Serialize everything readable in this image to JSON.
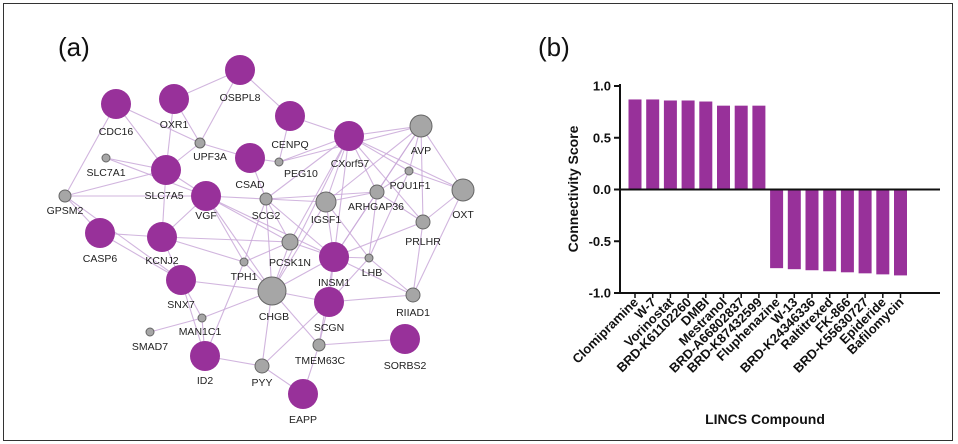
{
  "panels": {
    "a_label": "(a)",
    "b_label": "(b)"
  },
  "colors": {
    "purple": "#98319a",
    "grey": "#a6a6a6",
    "edge": "#c9a8d8",
    "axis": "#111111"
  },
  "network": {
    "nodes": [
      {
        "id": "OSBPL8",
        "kind": "purple"
      },
      {
        "id": "CDC16",
        "kind": "purple"
      },
      {
        "id": "OXR1",
        "kind": "purple"
      },
      {
        "id": "CENPQ",
        "kind": "purple"
      },
      {
        "id": "CXorf57",
        "kind": "purple"
      },
      {
        "id": "AVP",
        "kind": "grey"
      },
      {
        "id": "UPF3A",
        "kind": "grey"
      },
      {
        "id": "SLC7A1",
        "kind": "grey"
      },
      {
        "id": "SLC7A5",
        "kind": "purple"
      },
      {
        "id": "CSAD",
        "kind": "purple"
      },
      {
        "id": "PEG10",
        "kind": "grey"
      },
      {
        "id": "POU1F1",
        "kind": "grey"
      },
      {
        "id": "OXT",
        "kind": "grey"
      },
      {
        "id": "GPSM2",
        "kind": "grey"
      },
      {
        "id": "VGF",
        "kind": "purple"
      },
      {
        "id": "SCG2",
        "kind": "grey"
      },
      {
        "id": "IGSF1",
        "kind": "grey"
      },
      {
        "id": "ARHGAP36",
        "kind": "grey"
      },
      {
        "id": "PRLHR",
        "kind": "grey"
      },
      {
        "id": "CASP6",
        "kind": "purple"
      },
      {
        "id": "KCNJ2",
        "kind": "purple"
      },
      {
        "id": "PCSK1N",
        "kind": "grey"
      },
      {
        "id": "TPH1",
        "kind": "grey"
      },
      {
        "id": "INSM1",
        "kind": "purple"
      },
      {
        "id": "LHB",
        "kind": "grey"
      },
      {
        "id": "SNX7",
        "kind": "purple"
      },
      {
        "id": "CHGB",
        "kind": "grey"
      },
      {
        "id": "RIIAD1",
        "kind": "grey"
      },
      {
        "id": "MAN1C1",
        "kind": "grey"
      },
      {
        "id": "SCGN",
        "kind": "purple"
      },
      {
        "id": "SMAD7",
        "kind": "grey"
      },
      {
        "id": "SORBS2",
        "kind": "purple"
      },
      {
        "id": "TMEM63C",
        "kind": "grey"
      },
      {
        "id": "ID2",
        "kind": "purple"
      },
      {
        "id": "PYY",
        "kind": "grey"
      },
      {
        "id": "EAPP",
        "kind": "purple"
      }
    ],
    "edges": [
      [
        "OSBPL8",
        "CENPQ"
      ],
      [
        "OSBPL8",
        "OXR1"
      ],
      [
        "OSBPL8",
        "UPF3A"
      ],
      [
        "CDC16",
        "SLC7A5"
      ],
      [
        "CDC16",
        "UPF3A"
      ],
      [
        "OXR1",
        "UPF3A"
      ],
      [
        "OXR1",
        "SLC7A5"
      ],
      [
        "UPF3A",
        "SLC7A5"
      ],
      [
        "UPF3A",
        "CSAD"
      ],
      [
        "CENPQ",
        "CXorf57"
      ],
      [
        "CENPQ",
        "PEG10"
      ],
      [
        "CXorf57",
        "AVP"
      ],
      [
        "CXorf57",
        "OXT"
      ],
      [
        "CXorf57",
        "POU1F1"
      ],
      [
        "CXorf57",
        "ARHGAP36"
      ],
      [
        "CXorf57",
        "PEG10"
      ],
      [
        "CXorf57",
        "SCG2"
      ],
      [
        "CXorf57",
        "IGSF1"
      ],
      [
        "CXorf57",
        "INSM1"
      ],
      [
        "CXorf57",
        "CHGB"
      ],
      [
        "CXorf57",
        "PRLHR"
      ],
      [
        "CXorf57",
        "PCSK1N"
      ],
      [
        "AVP",
        "OXT"
      ],
      [
        "AVP",
        "POU1F1"
      ],
      [
        "AVP",
        "ARHGAP36"
      ],
      [
        "AVP",
        "INSM1"
      ],
      [
        "AVP",
        "PEG10"
      ],
      [
        "AVP",
        "PRLHR"
      ],
      [
        "SLC7A1",
        "SLC7A5"
      ],
      [
        "SLC7A1",
        "VGF"
      ],
      [
        "SLC7A5",
        "GPSM2"
      ],
      [
        "SLC7A5",
        "VGF"
      ],
      [
        "SLC7A5",
        "KCNJ2"
      ],
      [
        "GPSM2",
        "CASP6"
      ],
      [
        "GPSM2",
        "SNX7"
      ],
      [
        "GPSM2",
        "VGF"
      ],
      [
        "GPSM2",
        "CDC16"
      ],
      [
        "CSAD",
        "PEG10"
      ],
      [
        "CSAD",
        "SCG2"
      ],
      [
        "VGF",
        "SCG2"
      ],
      [
        "VGF",
        "KCNJ2"
      ],
      [
        "VGF",
        "PCSK1N"
      ],
      [
        "VGF",
        "INSM1"
      ],
      [
        "VGF",
        "CHGB"
      ],
      [
        "VGF",
        "TPH1"
      ],
      [
        "SCG2",
        "IGSF1"
      ],
      [
        "SCG2",
        "PCSK1N"
      ],
      [
        "SCG2",
        "CHGB"
      ],
      [
        "SCG2",
        "INSM1"
      ],
      [
        "SCG2",
        "TPH1"
      ],
      [
        "SCG2",
        "ARHGAP36"
      ],
      [
        "IGSF1",
        "ARHGAP36"
      ],
      [
        "IGSF1",
        "INSM1"
      ],
      [
        "IGSF1",
        "CHGB"
      ],
      [
        "IGSF1",
        "LHB"
      ],
      [
        "ARHGAP36",
        "INSM1"
      ],
      [
        "ARHGAP36",
        "POU1F1"
      ],
      [
        "ARHGAP36",
        "PRLHR"
      ],
      [
        "ARHGAP36",
        "LHB"
      ],
      [
        "POU1F1",
        "OXT"
      ],
      [
        "POU1F1",
        "LHB"
      ],
      [
        "PRLHR",
        "OXT"
      ],
      [
        "PRLHR",
        "INSM1"
      ],
      [
        "PRLHR",
        "RIIAD1"
      ],
      [
        "KCNJ2",
        "CASP6"
      ],
      [
        "KCNJ2",
        "SNX7"
      ],
      [
        "KCNJ2",
        "PCSK1N"
      ],
      [
        "KCNJ2",
        "TPH1"
      ],
      [
        "PCSK1N",
        "CHGB"
      ],
      [
        "PCSK1N",
        "INSM1"
      ],
      [
        "PCSK1N",
        "TPH1"
      ],
      [
        "TPH1",
        "CHGB"
      ],
      [
        "INSM1",
        "CHGB"
      ],
      [
        "INSM1",
        "SCGN"
      ],
      [
        "INSM1",
        "LHB"
      ],
      [
        "INSM1",
        "TMEM63C"
      ],
      [
        "INSM1",
        "RIIAD1"
      ],
      [
        "LHB",
        "SCGN"
      ],
      [
        "LHB",
        "RIIAD1"
      ],
      [
        "SNX7",
        "MAN1C1"
      ],
      [
        "SNX7",
        "CHGB"
      ],
      [
        "SNX7",
        "ID2"
      ],
      [
        "CHGB",
        "SCGN"
      ],
      [
        "CHGB",
        "PYY"
      ],
      [
        "CHGB",
        "MAN1C1"
      ],
      [
        "CHGB",
        "TMEM63C"
      ],
      [
        "MAN1C1",
        "SMAD7"
      ],
      [
        "MAN1C1",
        "ID2"
      ],
      [
        "SCGN",
        "TMEM63C"
      ],
      [
        "SCGN",
        "RIIAD1"
      ],
      [
        "SCGN",
        "PYY"
      ],
      [
        "ID2",
        "PYY"
      ],
      [
        "ID2",
        "TPH1"
      ],
      [
        "PYY",
        "EAPP"
      ],
      [
        "EAPP",
        "TMEM63C"
      ],
      [
        "SORBS2",
        "TMEM63C"
      ],
      [
        "CASP6",
        "SNX7"
      ],
      [
        "OXT",
        "RIIAD1"
      ],
      [
        "AVP",
        "IGSF1"
      ]
    ]
  },
  "chart_data": {
    "type": "bar",
    "title": "",
    "xlabel": "LINCS Compound",
    "ylabel": "Connectivity Score",
    "ylim": [
      -1.0,
      1.0
    ],
    "yticks": [
      "1.0",
      "0.5",
      "0.0",
      "-0.5",
      "-1.0"
    ],
    "ytick_values": [
      1.0,
      0.5,
      0.0,
      -0.5,
      -1.0
    ],
    "grid": false,
    "legend": "none",
    "categories": [
      "Clomipramine",
      "W-7",
      "Vorinostat",
      "BRD-K61102260",
      "DMBI",
      "Mestranol",
      "BRD-A66802837",
      "BRD-K87432599",
      "Fluphenazine",
      "W-13",
      "BRD-K24346336",
      "Raltitrexed",
      "FK-866",
      "BRD-K55630727",
      "Epideride",
      "Bafilomycin"
    ],
    "values": [
      0.87,
      0.87,
      0.86,
      0.86,
      0.85,
      0.81,
      0.81,
      0.81,
      -0.76,
      -0.77,
      -0.78,
      -0.79,
      -0.8,
      -0.81,
      -0.82,
      -0.83
    ]
  }
}
